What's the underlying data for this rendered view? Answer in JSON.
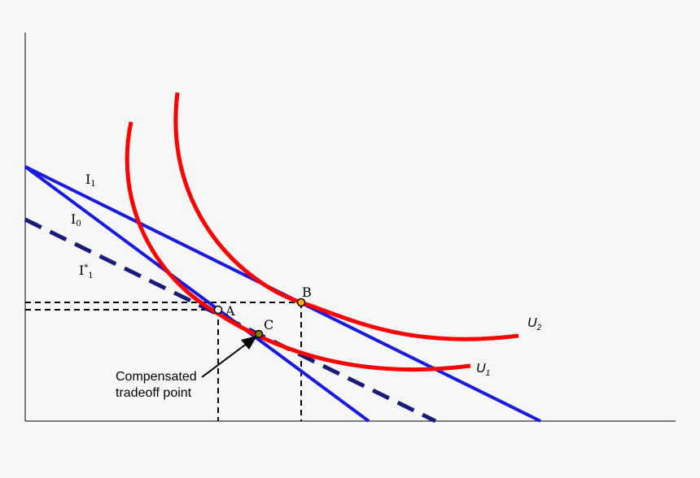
{
  "colors": {
    "background": "#f7f7f7",
    "budget_line": "#1a1adf",
    "compensated_line": "#1a1a7a",
    "indifference_curve": "#ff0000",
    "guide": "#000000",
    "point_A": "#ffffff",
    "point_B": "#ffb000",
    "point_C": "#808000"
  },
  "labels": {
    "I1_main": "I",
    "I1_sub": "1",
    "I0_main": "I",
    "I0_sub": "0",
    "Istar_main": "I",
    "Istar_sup": "*",
    "Istar_sub": "1",
    "U2_main": "U",
    "U2_sub": "2",
    "U1_main": "U",
    "U1_sub": "1",
    "point_A": "A",
    "point_B": "B",
    "point_C": "C",
    "annotation_line1": "Compensated",
    "annotation_line2": "tradeoff point"
  }
}
